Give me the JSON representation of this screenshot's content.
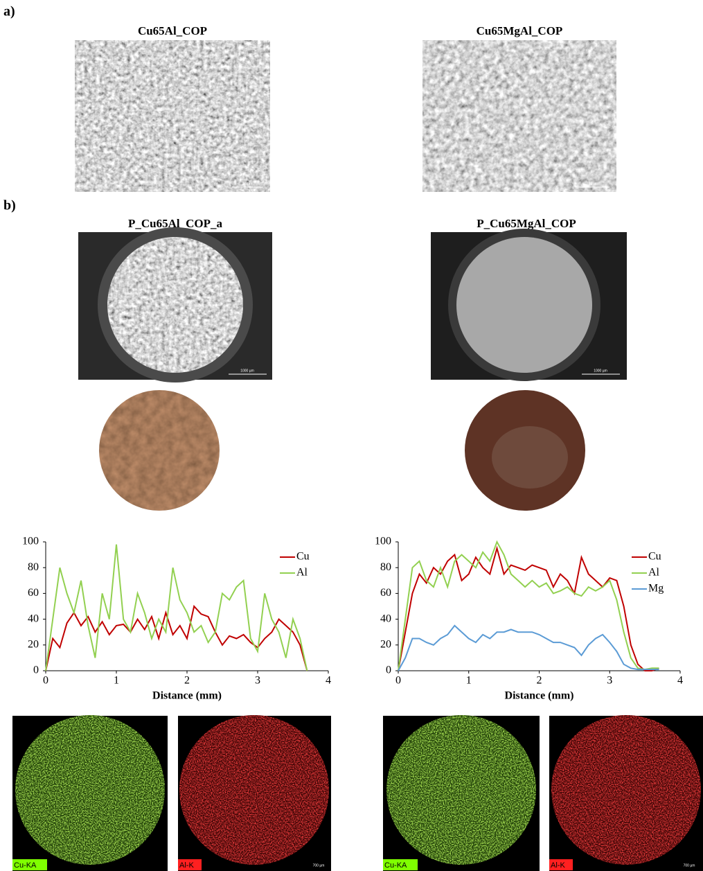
{
  "panel_a": {
    "label": "a)",
    "images": [
      {
        "title": "Cu65Al_COP",
        "scale": "10 µm"
      },
      {
        "title": "Cu65MgAl_COP",
        "scale": "10 µm"
      }
    ]
  },
  "panel_b": {
    "label": "b)",
    "columns": [
      {
        "title": "P_Cu65Al_COP_a",
        "scale": "1000 µm",
        "maps": [
          {
            "label": "Cu-KA"
          },
          {
            "label": "Al-K",
            "scale": "700 µm"
          }
        ]
      },
      {
        "title": "P_Cu65MgAl_COP",
        "scale": "1000 µm",
        "maps": [
          {
            "label": "Cu-KA"
          },
          {
            "label": "Al-K",
            "scale": "700 µm"
          }
        ]
      }
    ]
  },
  "chart_data": [
    {
      "type": "line",
      "x_label": "Distance (mm)",
      "xlim": [
        0,
        4
      ],
      "xticks": [
        0,
        1,
        2,
        3,
        4
      ],
      "ylim": [
        0,
        100
      ],
      "yticks": [
        0,
        20,
        40,
        60,
        80,
        100
      ],
      "legend": "upper right",
      "x": [
        0,
        0.1,
        0.2,
        0.3,
        0.4,
        0.5,
        0.6,
        0.7,
        0.8,
        0.9,
        1.0,
        1.1,
        1.2,
        1.3,
        1.4,
        1.5,
        1.6,
        1.7,
        1.8,
        1.9,
        2.0,
        2.1,
        2.2,
        2.3,
        2.4,
        2.5,
        2.6,
        2.7,
        2.8,
        2.9,
        3.0,
        3.1,
        3.2,
        3.3,
        3.4,
        3.5,
        3.6,
        3.7
      ],
      "series": [
        {
          "name": "Cu",
          "color": "#c00000",
          "values": [
            0,
            25,
            18,
            37,
            45,
            35,
            42,
            30,
            38,
            28,
            35,
            36,
            30,
            40,
            32,
            42,
            25,
            45,
            28,
            35,
            25,
            50,
            44,
            42,
            30,
            20,
            27,
            25,
            28,
            22,
            18,
            25,
            30,
            40,
            35,
            30,
            20,
            0
          ]
        },
        {
          "name": "Al",
          "color": "#92d050",
          "values": [
            0,
            40,
            80,
            60,
            45,
            70,
            35,
            10,
            60,
            40,
            98,
            40,
            30,
            60,
            45,
            25,
            40,
            30,
            80,
            55,
            45,
            30,
            35,
            22,
            30,
            60,
            55,
            65,
            70,
            25,
            15,
            60,
            40,
            30,
            10,
            40,
            25,
            0
          ]
        }
      ]
    },
    {
      "type": "line",
      "x_label": "Distance (mm)",
      "xlim": [
        0,
        4
      ],
      "xticks": [
        0,
        1,
        2,
        3,
        4
      ],
      "ylim": [
        0,
        100
      ],
      "yticks": [
        0,
        20,
        40,
        60,
        80,
        100
      ],
      "legend": "upper right",
      "x": [
        0,
        0.1,
        0.2,
        0.3,
        0.4,
        0.5,
        0.6,
        0.7,
        0.8,
        0.9,
        1.0,
        1.1,
        1.2,
        1.3,
        1.4,
        1.5,
        1.6,
        1.7,
        1.8,
        1.9,
        2.0,
        2.1,
        2.2,
        2.3,
        2.4,
        2.5,
        2.6,
        2.7,
        2.8,
        2.9,
        3.0,
        3.1,
        3.2,
        3.3,
        3.4,
        3.5,
        3.6,
        3.7
      ],
      "series": [
        {
          "name": "Cu",
          "color": "#c00000",
          "values": [
            0,
            30,
            60,
            75,
            68,
            80,
            75,
            85,
            90,
            70,
            75,
            88,
            80,
            75,
            95,
            75,
            82,
            80,
            78,
            82,
            80,
            78,
            65,
            75,
            70,
            60,
            88,
            75,
            70,
            65,
            72,
            70,
            50,
            20,
            5,
            0,
            0,
            2
          ]
        },
        {
          "name": "Al",
          "color": "#92d050",
          "values": [
            0,
            40,
            80,
            85,
            70,
            65,
            80,
            65,
            85,
            90,
            85,
            80,
            92,
            85,
            100,
            90,
            75,
            70,
            65,
            70,
            65,
            68,
            60,
            62,
            65,
            60,
            58,
            65,
            62,
            65,
            70,
            55,
            30,
            10,
            2,
            1,
            2,
            2
          ]
        },
        {
          "name": "Mg",
          "color": "#5b9bd5",
          "values": [
            0,
            10,
            25,
            25,
            22,
            20,
            25,
            28,
            35,
            30,
            25,
            22,
            28,
            25,
            30,
            30,
            32,
            30,
            30,
            30,
            28,
            25,
            22,
            22,
            20,
            18,
            12,
            20,
            25,
            28,
            22,
            15,
            5,
            2,
            1,
            1,
            1,
            1
          ]
        }
      ]
    }
  ]
}
